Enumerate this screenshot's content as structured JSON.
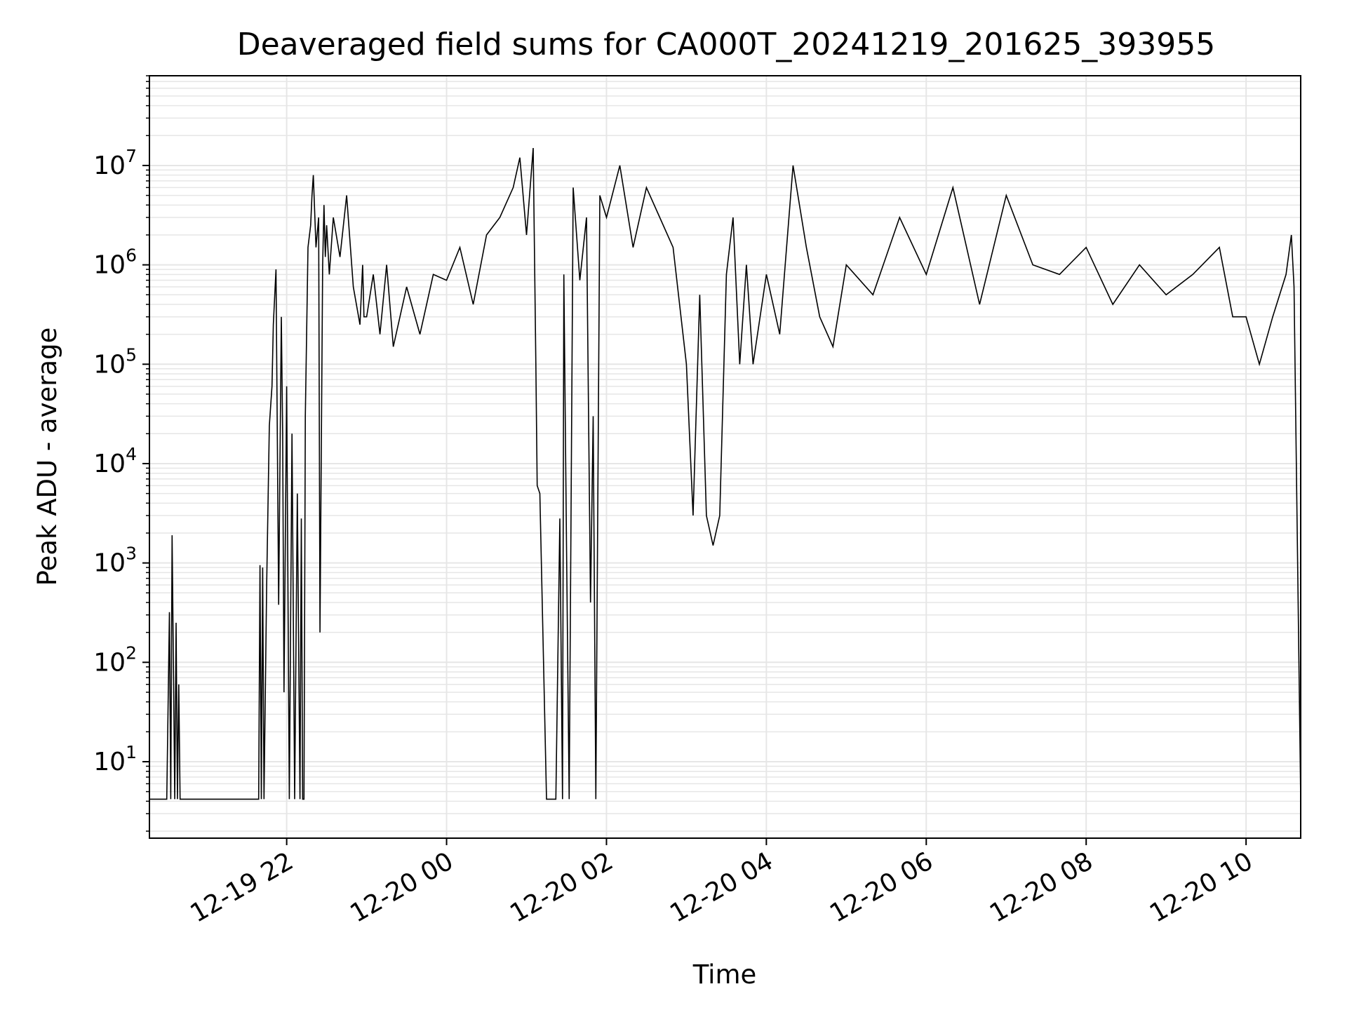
{
  "chart_data": {
    "type": "line",
    "title": "Deaveraged field sums for CA000T_20241219_201625_393955",
    "xlabel": "Time",
    "ylabel": "Peak ADU - average",
    "yscale": "log",
    "ylim": [
      1.7,
      80000000
    ],
    "xlim": [
      "2024-12-19 20:17",
      "2024-12-20 10:41"
    ],
    "grid": true,
    "grid_color": "#e6e6e6",
    "line_color": "#000000",
    "xticks": [
      {
        "t": "2024-12-19 22:00",
        "label": "12-19 22"
      },
      {
        "t": "2024-12-20 00:00",
        "label": "12-20 00"
      },
      {
        "t": "2024-12-20 02:00",
        "label": "12-20 02"
      },
      {
        "t": "2024-12-20 04:00",
        "label": "12-20 04"
      },
      {
        "t": "2024-12-20 06:00",
        "label": "12-20 06"
      },
      {
        "t": "2024-12-20 08:00",
        "label": "12-20 08"
      },
      {
        "t": "2024-12-20 10:00",
        "label": "12-20 10"
      }
    ],
    "yticks": [
      {
        "value": 10,
        "base": "10",
        "exp": "1"
      },
      {
        "value": 100,
        "base": "10",
        "exp": "2"
      },
      {
        "value": 1000,
        "base": "10",
        "exp": "3"
      },
      {
        "value": 10000,
        "base": "10",
        "exp": "4"
      },
      {
        "value": 100000,
        "base": "10",
        "exp": "5"
      },
      {
        "value": 1000000,
        "base": "10",
        "exp": "6"
      },
      {
        "value": 10000000,
        "base": "10",
        "exp": "7"
      }
    ],
    "series": [
      {
        "x": [
          "2024-12-19 20:17",
          "2024-12-19 20:30",
          "2024-12-19 20:32",
          "2024-12-19 20:33",
          "2024-12-19 20:34",
          "2024-12-19 20:36",
          "2024-12-19 20:37",
          "2024-12-19 20:38",
          "2024-12-19 20:39",
          "2024-12-19 20:40",
          "2024-12-19 20:45",
          "2024-12-19 21:00",
          "2024-12-19 21:30",
          "2024-12-19 21:39",
          "2024-12-19 21:40",
          "2024-12-19 21:41",
          "2024-12-19 21:42",
          "2024-12-19 21:43",
          "2024-12-19 21:45",
          "2024-12-19 21:47",
          "2024-12-19 21:49",
          "2024-12-19 21:50",
          "2024-12-19 21:52",
          "2024-12-19 21:54",
          "2024-12-19 21:56",
          "2024-12-19 21:57",
          "2024-12-19 21:58",
          "2024-12-19 22:00",
          "2024-12-19 22:02",
          "2024-12-19 22:04",
          "2024-12-19 22:06",
          "2024-12-19 22:08",
          "2024-12-19 22:10",
          "2024-12-19 22:11",
          "2024-12-19 22:12",
          "2024-12-19 22:13",
          "2024-12-19 22:14",
          "2024-12-19 22:16",
          "2024-12-19 22:18",
          "2024-12-19 22:19",
          "2024-12-19 22:20",
          "2024-12-19 22:22",
          "2024-12-19 22:24",
          "2024-12-19 22:25",
          "2024-12-19 22:27",
          "2024-12-19 22:28",
          "2024-12-19 22:29",
          "2024-12-19 22:30",
          "2024-12-19 22:32",
          "2024-12-19 22:35",
          "2024-12-19 22:40",
          "2024-12-19 22:45",
          "2024-12-19 22:50",
          "2024-12-19 22:55",
          "2024-12-19 22:57",
          "2024-12-19 22:58",
          "2024-12-19 23:00",
          "2024-12-19 23:05",
          "2024-12-19 23:10",
          "2024-12-19 23:15",
          "2024-12-19 23:20",
          "2024-12-19 23:30",
          "2024-12-19 23:40",
          "2024-12-19 23:50",
          "2024-12-20 00:00",
          "2024-12-20 00:10",
          "2024-12-20 00:20",
          "2024-12-20 00:30",
          "2024-12-20 00:40",
          "2024-12-20 00:50",
          "2024-12-20 00:55",
          "2024-12-20 01:00",
          "2024-12-20 01:05",
          "2024-12-20 01:07",
          "2024-12-20 01:08",
          "2024-12-20 01:10",
          "2024-12-20 01:15",
          "2024-12-20 01:20",
          "2024-12-20 01:22",
          "2024-12-20 01:25",
          "2024-12-20 01:27",
          "2024-12-20 01:28",
          "2024-12-20 01:30",
          "2024-12-20 01:32",
          "2024-12-20 01:35",
          "2024-12-20 01:40",
          "2024-12-20 01:45",
          "2024-12-20 01:48",
          "2024-12-20 01:50",
          "2024-12-20 01:52",
          "2024-12-20 01:55",
          "2024-12-20 02:00",
          "2024-12-20 02:10",
          "2024-12-20 02:20",
          "2024-12-20 02:30",
          "2024-12-20 02:40",
          "2024-12-20 02:50",
          "2024-12-20 03:00",
          "2024-12-20 03:05",
          "2024-12-20 03:10",
          "2024-12-20 03:15",
          "2024-12-20 03:20",
          "2024-12-20 03:25",
          "2024-12-20 03:30",
          "2024-12-20 03:35",
          "2024-12-20 03:40",
          "2024-12-20 03:45",
          "2024-12-20 03:50",
          "2024-12-20 04:00",
          "2024-12-20 04:10",
          "2024-12-20 04:20",
          "2024-12-20 04:30",
          "2024-12-20 04:40",
          "2024-12-20 04:50",
          "2024-12-20 05:00",
          "2024-12-20 05:20",
          "2024-12-20 05:40",
          "2024-12-20 06:00",
          "2024-12-20 06:20",
          "2024-12-20 06:40",
          "2024-12-20 07:00",
          "2024-12-20 07:20",
          "2024-12-20 07:40",
          "2024-12-20 08:00",
          "2024-12-20 08:20",
          "2024-12-20 08:40",
          "2024-12-20 09:00",
          "2024-12-20 09:20",
          "2024-12-20 09:40",
          "2024-12-20 09:50",
          "2024-12-20 10:00",
          "2024-12-20 10:10",
          "2024-12-20 10:20",
          "2024-12-20 10:30",
          "2024-12-20 10:34",
          "2024-12-20 10:36",
          "2024-12-20 10:41"
        ],
        "y": [
          4.2,
          4.2,
          320,
          4.2,
          1900,
          4.2,
          250,
          4.2,
          60,
          4.2,
          4.2,
          4.2,
          4.2,
          4.2,
          950,
          4.2,
          900,
          4.2,
          600,
          24000,
          60000,
          250000,
          900000,
          380,
          300000,
          20000,
          50,
          60000,
          4.2,
          20000,
          4.2,
          5000,
          4.2,
          2800,
          4.2,
          4.2,
          30000,
          1500000,
          2500000,
          5000000,
          8000000,
          1500000,
          3000000,
          200,
          1000000,
          4000000,
          1200000,
          2500000,
          800000,
          3000000,
          1200000,
          5000000,
          600000,
          250000,
          1000000,
          300000,
          300000,
          800000,
          200000,
          1000000,
          150000,
          600000,
          200000,
          800000,
          700000,
          1500000,
          400000,
          2000000,
          3000000,
          6000000,
          12000000,
          2000000,
          15000000,
          100000,
          6000,
          5000,
          4.2,
          4.2,
          4.2,
          2800,
          4.2,
          800000,
          1500,
          4.2,
          6000000,
          700000,
          3000000,
          400,
          30000,
          4.2,
          5000000,
          3000000,
          10000000,
          1500000,
          6000000,
          3000000,
          1500000,
          100000,
          3000,
          500000,
          3000,
          1500,
          3000,
          800000,
          3000000,
          100000,
          1000000,
          100000,
          800000,
          200000,
          10000000,
          1500000,
          300000,
          150000,
          1000000,
          500000,
          3000000,
          800000,
          6000000,
          400000,
          5000000,
          1000000,
          800000,
          1500000,
          400000,
          1000000,
          500000,
          800000,
          1500000,
          300000,
          300000,
          100000,
          300000,
          800000,
          2000000,
          600000,
          4.2
        ]
      }
    ]
  }
}
